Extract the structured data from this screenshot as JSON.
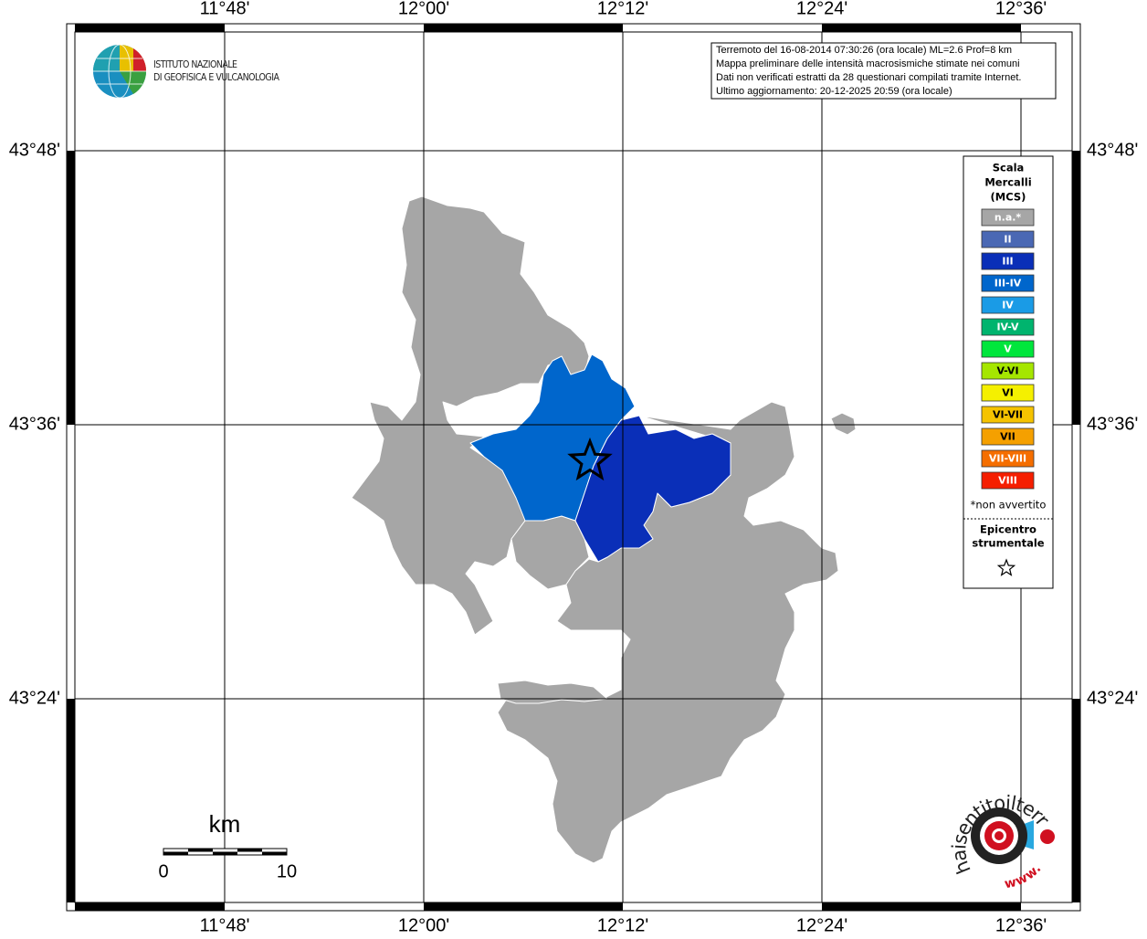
{
  "map": {
    "lon_labels": [
      "11°48'",
      "12°00'",
      "12°12'",
      "12°24'",
      "12°36'"
    ],
    "lat_labels": [
      "43°48'",
      "43°36'",
      "43°24'"
    ]
  },
  "info": [
    "Terremoto del 16-08-2014 07:30:26 (ora locale) ML=2.6 Prof=8 km",
    "Mappa preliminare delle intensità macrosismiche stimate nei comuni",
    "Dati non verificati estratti da 28 questionari compilati tramite Internet.",
    "Ultimo aggiornamento: 20-12-2025 20:59 (ora locale)"
  ],
  "legend": {
    "title": [
      "Scala",
      "Mercalli",
      "(MCS)"
    ],
    "items": [
      {
        "label": "n.a.*",
        "color": "#a6a6a6"
      },
      {
        "label": "II",
        "color": "#4a68b4"
      },
      {
        "label": "III",
        "color": "#0a2fb8"
      },
      {
        "label": "III-IV",
        "color": "#0066cc"
      },
      {
        "label": "IV",
        "color": "#1a9be6"
      },
      {
        "label": "IV-V",
        "color": "#00b46e"
      },
      {
        "label": "V",
        "color": "#00e63c"
      },
      {
        "label": "V-VI",
        "color": "#a5e600"
      },
      {
        "label": "VI",
        "color": "#f5f000"
      },
      {
        "label": "VI-VII",
        "color": "#f5c300"
      },
      {
        "label": "VII",
        "color": "#f5a000"
      },
      {
        "label": "VII-VIII",
        "color": "#f56e00"
      },
      {
        "label": "VIII",
        "color": "#f51e00"
      }
    ],
    "note": "*non avvertito",
    "epicenter": [
      "Epicentro",
      "strumentale"
    ]
  },
  "scale": {
    "unit": "km",
    "start": "0",
    "end": "10"
  },
  "logos": {
    "ingv": [
      "ISTITUTO NAZIONALE",
      "DI GEOFISICA E VULCANOLOGIA"
    ],
    "hsit": [
      "haisentitoilterremoto.it",
      "www."
    ]
  }
}
